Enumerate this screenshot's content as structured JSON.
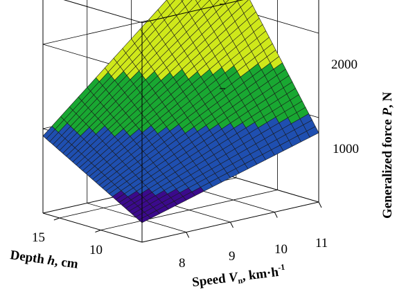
{
  "chart_data": {
    "type": "surface",
    "z_label": {
      "prefix": "Generalized force ",
      "var": "P",
      "suffix": ", N"
    },
    "x_label": {
      "prefix": "Speed ",
      "var": "V",
      "sub": "n",
      "suffix": ", km·h",
      "sup": "-1"
    },
    "y_label": {
      "prefix": "Depth ",
      "var": "h",
      "suffix": ", cm"
    },
    "x_ticks": [
      "8",
      "9",
      "10",
      "11"
    ],
    "y_ticks": [
      "15",
      "10"
    ],
    "z_ticks": [
      "1000",
      "2000"
    ],
    "x_range": [
      7,
      11
    ],
    "y_range": [
      5,
      17
    ],
    "z_range": [
      0,
      2600
    ],
    "grid": true,
    "colormap": [
      "#3b0a8c",
      "#1f4fb0",
      "#19a832",
      "#cfe81a",
      "#e0110f"
    ],
    "surface_corners": {
      "speed_11_depth_15": 2420,
      "speed_11_depth_5": 820,
      "speed_7_depth_15": 800,
      "speed_7_depth_5": 230
    }
  }
}
